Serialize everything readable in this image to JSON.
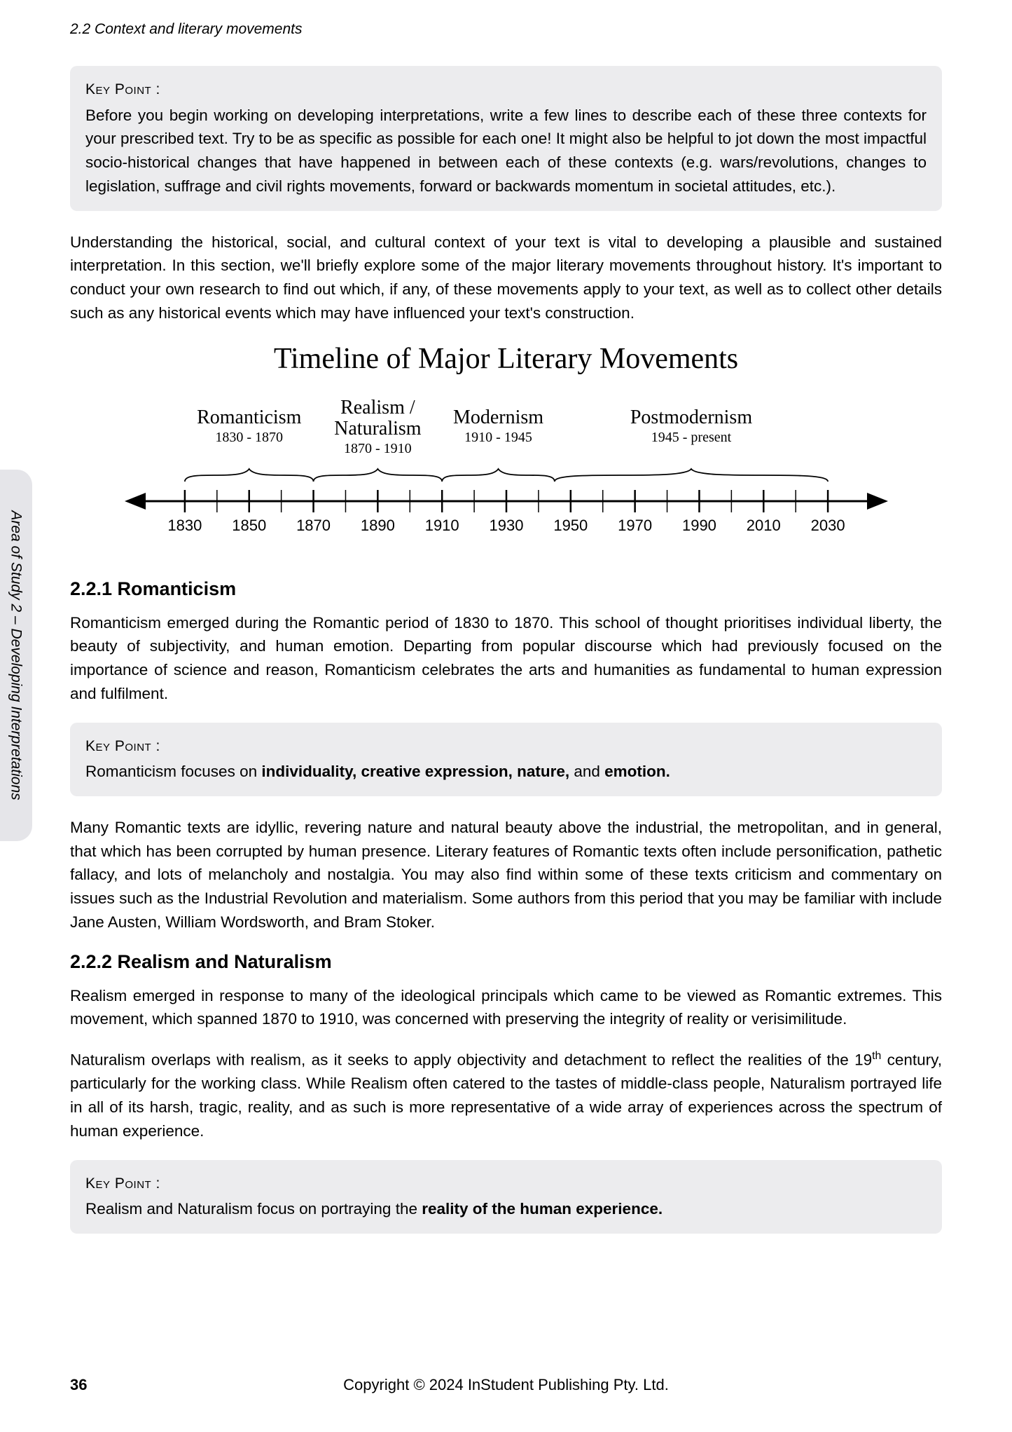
{
  "header": "2.2 Context and literary movements",
  "side_tab": "Area of Study 2 – Developing Interpretations",
  "keypoint_label": "Key Point :",
  "keypoint1": "Before you begin working on developing interpretations, write a few lines to describe each of these three contexts for your prescribed text. Try to be as specific as possible for each one! It might also be helpful to jot down the most impactful socio-historical changes that have happened in between each of these contexts (e.g. wars/revolutions, changes to legislation, suffrage and civil rights movements, forward or backwards momentum in societal attitudes, etc.).",
  "intro_para": "Understanding the historical, social, and cultural context of your text is vital to developing a plausible and sustained interpretation. In this section, we'll briefly explore some of the major literary movements throughout history. It's important to conduct your own research to find out which, if any, of these movements apply to your text, as well as to collect other details such as any historical events which may have influenced your text's construction.",
  "timeline": {
    "title": "Timeline of Major Literary Movements",
    "type": "timeline",
    "ticks": [
      1830,
      1850,
      1870,
      1890,
      1910,
      1930,
      1950,
      1970,
      1990,
      2010,
      2030
    ],
    "minor_step": 10,
    "xlim": [
      1820,
      2040
    ],
    "movements": [
      {
        "name": "Romanticism",
        "range": "1830 - 1870",
        "start": 1830,
        "end": 1870
      },
      {
        "name": "Realism / Naturalism",
        "range": "1870 - 1910",
        "start": 1870,
        "end": 1910
      },
      {
        "name": "Modernism",
        "range": "1910 - 1945",
        "start": 1910,
        "end": 1945
      },
      {
        "name": "Postmodernism",
        "range": "1945 - present",
        "start": 1945,
        "end": 2030
      }
    ],
    "font_family_label": "Lucida Calligraphy",
    "label_fontsize_name": 28,
    "label_fontsize_range": 20,
    "tick_fontsize": 22,
    "axis_color": "#000000",
    "background_color": "#ffffff"
  },
  "section1": {
    "heading": "2.2.1   Romanticism",
    "para1": "Romanticism emerged during the Romantic period of 1830 to 1870. This school of thought prioritises individual liberty, the beauty of subjectivity, and human emotion. Departing from popular discourse which had previously focused on the importance of science and reason, Romanticism celebrates the arts and humanities as fundamental to human expression and fulfilment.",
    "keypoint_pre": "Romanticism focuses on ",
    "keypoint_bold": "individuality, creative expression, nature,",
    "keypoint_mid": " and ",
    "keypoint_bold2": "emotion.",
    "para2": "Many Romantic texts are idyllic, revering nature and natural beauty above the industrial, the metropolitan, and in general, that which has been corrupted by human presence. Literary features of Romantic texts often include personification, pathetic fallacy, and lots of melancholy and nostalgia. You may also find within some of these texts criticism and commentary on issues such as the Industrial Revolution and materialism. Some authors from this period that you may be familiar with include Jane Austen, William Wordsworth, and Bram Stoker."
  },
  "section2": {
    "heading": "2.2.2   Realism and Naturalism",
    "para1": "Realism emerged in response to many of the ideological principals which came to be viewed as Romantic extremes. This movement, which spanned 1870 to 1910, was concerned with preserving the integrity of reality or verisimilitude.",
    "para2_pre": "Naturalism overlaps with realism, as it seeks to apply objectivity and detachment to reflect the realities of the 19",
    "para2_sup": "th",
    "para2_post": " century, particularly for the working class. While Realism often catered to the tastes of middle-class people, Naturalism portrayed life in all of its harsh, tragic, reality, and as such is more representative of a wide array of experiences across the spectrum of human experience.",
    "keypoint_pre": "Realism and Naturalism focus on portraying the ",
    "keypoint_bold": "reality of the human experience."
  },
  "footer": {
    "page": "36",
    "copyright": "Copyright © 2024 InStudent Publishing Pty. Ltd."
  }
}
